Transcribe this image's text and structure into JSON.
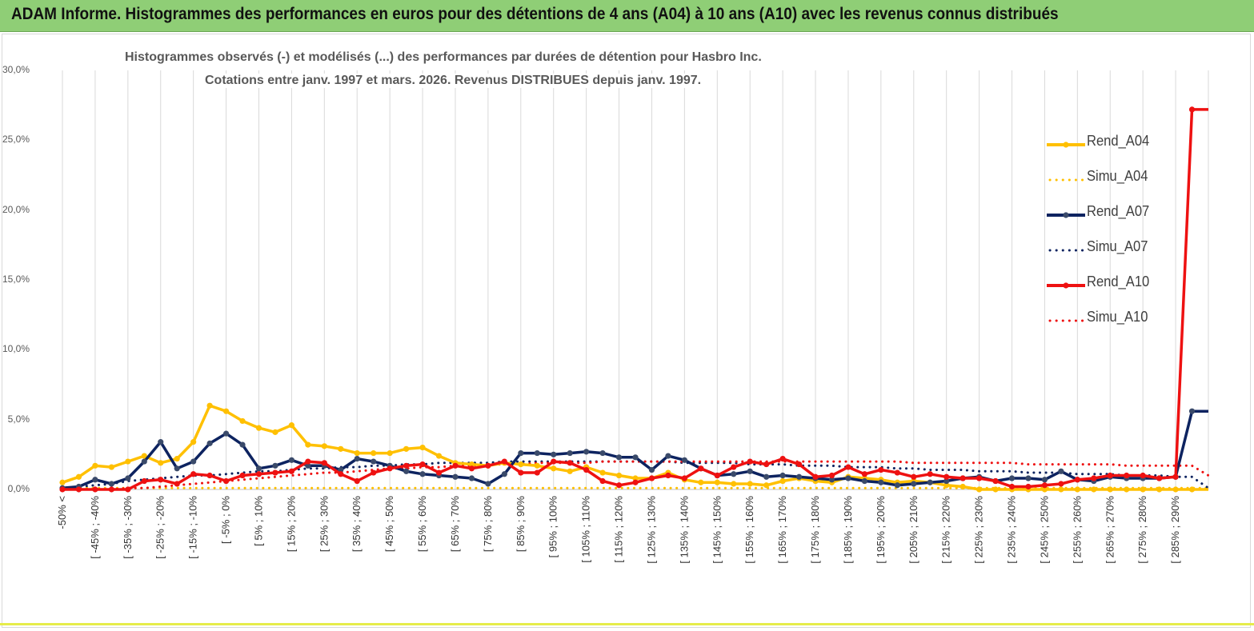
{
  "banner": {
    "title": "ADAM Informe. Histogrammes des performances en euros pour des détentions de 4 ans (A04) à 10 ans (A10) avec les revenus connus distribués"
  },
  "chart_data": {
    "type": "line",
    "title": "Histogrammes observés (-) et modélisés (...)  des performances par durées de détention pour Hasbro Inc.",
    "subtitle": "Cotations entre janv. 1997 et mars. 2026.  Revenus DISTRIBUES depuis janv. 1997.",
    "ylim": [
      0,
      30
    ],
    "y_tick_labels": [
      "0,0%",
      "5,0%",
      "10,0%",
      "15,0%",
      "20,0%",
      "25,0%",
      "30,0%"
    ],
    "grid": {
      "vertical": true,
      "horizontal": false
    },
    "legend_position": "right",
    "x_tick_labels": [
      "-50% <",
      "[ -45% ; -40%",
      "[ -35% ; -30%",
      "[ -25% ; -20%",
      "[ -15% ; -10%",
      "[ -5% ; 0%",
      "[ 5% ; 10%",
      "[ 15% ; 20%",
      "[ 25% ; 30%",
      "[ 35% ; 40%",
      "[ 45% ; 50%",
      "[ 55% ; 60%",
      "[ 65% ; 70%",
      "[ 75% ; 80%",
      "[ 85% ; 90%",
      "[ 95% ; 100%",
      "[ 105% ; 110%",
      "[ 115% ; 120%",
      "[ 125% ; 130%",
      "[ 135% ; 140%",
      "[ 145% ; 150%",
      "[ 155% ; 160%",
      "[ 165% ; 170%",
      "[ 175% ; 180%",
      "[ 185% ; 190%",
      "[ 195% ; 200%",
      "[ 205% ; 210%",
      "[ 215% ; 220%",
      "[ 225% ; 230%",
      "[ 235% ; 240%",
      "[ 245% ; 250%",
      "[ 255% ; 260%",
      "[ 265% ; 270%",
      "[ 275% ; 280%",
      "[ 285% ; 290%"
    ],
    "x_tick_every": 2,
    "series": [
      {
        "name": "Rend_A04",
        "style": "solid",
        "color": "#ffc000",
        "values": [
          0.5,
          0.9,
          1.7,
          1.6,
          2.0,
          2.4,
          1.9,
          2.2,
          3.4,
          6.0,
          5.6,
          4.9,
          4.4,
          4.1,
          4.6,
          3.2,
          3.1,
          2.9,
          2.6,
          2.6,
          2.6,
          2.9,
          3.0,
          2.4,
          1.9,
          1.8,
          1.7,
          1.9,
          1.8,
          1.7,
          1.5,
          1.3,
          1.6,
          1.2,
          1.0,
          0.8,
          0.8,
          1.2,
          0.7,
          0.5,
          0.5,
          0.4,
          0.4,
          0.3,
          0.6,
          0.8,
          0.6,
          0.5,
          0.9,
          0.8,
          0.7,
          0.5,
          0.6,
          0.5,
          0.3,
          0.2,
          0.0,
          0.0,
          0.0,
          0.0,
          0.0,
          0.0,
          0.0,
          0.0,
          0.0,
          0.0,
          0.0,
          0.0,
          0.0,
          0.0,
          0.0
        ]
      },
      {
        "name": "Simu_A04",
        "style": "dotted",
        "color": "#ffc000",
        "values": [
          0.1,
          0.1,
          0.1,
          0.1,
          0.1,
          0.1,
          0.1,
          0.1,
          0.1,
          0.1,
          0.1,
          0.1,
          0.1,
          0.1,
          0.1,
          0.1,
          0.1,
          0.1,
          0.1,
          0.1,
          0.1,
          0.1,
          0.1,
          0.1,
          0.1,
          0.1,
          0.1,
          0.1,
          0.1,
          0.1,
          0.1,
          0.1,
          0.1,
          0.1,
          0.1,
          0.1,
          0.1,
          0.1,
          0.1,
          0.1,
          0.1,
          0.1,
          0.1,
          0.1,
          0.1,
          0.1,
          0.1,
          0.1,
          0.1,
          0.1,
          0.1,
          0.1,
          0.1,
          0.1,
          0.1,
          0.1,
          0.1,
          0.1,
          0.1,
          0.1,
          0.1,
          0.1,
          0.1,
          0.1,
          0.1,
          0.1,
          0.1,
          0.1,
          0.1,
          0.1,
          0.1
        ]
      },
      {
        "name": "Rend_A07",
        "style": "solid",
        "color": "#0d2360",
        "values": [
          0.1,
          0.2,
          0.7,
          0.4,
          0.8,
          2.0,
          3.4,
          1.5,
          2.0,
          3.3,
          4.0,
          3.2,
          1.5,
          1.7,
          2.1,
          1.7,
          1.7,
          1.4,
          2.2,
          2.0,
          1.7,
          1.3,
          1.1,
          1.0,
          0.9,
          0.8,
          0.4,
          1.1,
          2.6,
          2.6,
          2.5,
          2.6,
          2.7,
          2.6,
          2.3,
          2.3,
          1.4,
          2.4,
          2.1,
          1.5,
          1.0,
          1.1,
          1.3,
          0.9,
          1.0,
          0.9,
          0.8,
          0.7,
          0.8,
          0.6,
          0.5,
          0.3,
          0.4,
          0.5,
          0.6,
          0.8,
          0.9,
          0.6,
          0.8,
          0.8,
          0.7,
          1.3,
          0.7,
          0.6,
          0.9,
          0.8,
          0.8,
          0.8,
          0.9,
          5.6,
          5.6
        ]
      },
      {
        "name": "Simu_A07",
        "style": "dotted",
        "color": "#0d2360",
        "values": [
          0.1,
          0.2,
          0.3,
          0.4,
          0.6,
          0.7,
          0.8,
          0.9,
          1.0,
          1.0,
          1.1,
          1.2,
          1.3,
          1.3,
          1.4,
          1.5,
          1.5,
          1.6,
          1.6,
          1.7,
          1.7,
          1.8,
          1.8,
          1.9,
          1.9,
          1.9,
          1.9,
          2.0,
          2.0,
          2.0,
          2.0,
          2.0,
          2.0,
          2.0,
          2.0,
          2.0,
          2.0,
          2.0,
          1.9,
          1.9,
          1.9,
          1.9,
          1.8,
          1.8,
          1.8,
          1.7,
          1.7,
          1.7,
          1.6,
          1.6,
          1.6,
          1.5,
          1.5,
          1.4,
          1.4,
          1.4,
          1.3,
          1.3,
          1.3,
          1.2,
          1.2,
          1.2,
          1.1,
          1.1,
          1.1,
          1.0,
          1.0,
          1.0,
          0.9,
          0.9,
          0.1
        ]
      },
      {
        "name": "Rend_A10",
        "style": "solid",
        "color": "#ee1111",
        "values": [
          0.0,
          0.0,
          0.0,
          0.0,
          0.0,
          0.6,
          0.7,
          0.4,
          1.1,
          1.0,
          0.6,
          1.0,
          1.1,
          1.2,
          1.3,
          2.0,
          1.9,
          1.1,
          0.6,
          1.2,
          1.5,
          1.7,
          1.8,
          1.2,
          1.7,
          1.5,
          1.7,
          2.0,
          1.2,
          1.2,
          2.0,
          1.9,
          1.4,
          0.6,
          0.3,
          0.5,
          0.8,
          1.0,
          0.8,
          1.5,
          1.0,
          1.6,
          2.0,
          1.8,
          2.2,
          1.8,
          0.9,
          1.0,
          1.6,
          1.1,
          1.4,
          1.2,
          0.9,
          1.1,
          0.9,
          0.8,
          0.8,
          0.6,
          0.2,
          0.2,
          0.3,
          0.4,
          0.7,
          0.8,
          1.0,
          1.0,
          1.0,
          0.8,
          0.9,
          27.2,
          27.2
        ]
      },
      {
        "name": "Simu_A10",
        "style": "dotted",
        "color": "#ee1111",
        "values": [
          0.0,
          0.0,
          0.0,
          0.0,
          0.1,
          0.1,
          0.2,
          0.3,
          0.4,
          0.5,
          0.6,
          0.7,
          0.8,
          0.9,
          1.0,
          1.1,
          1.2,
          1.2,
          1.3,
          1.4,
          1.5,
          1.5,
          1.6,
          1.6,
          1.7,
          1.7,
          1.8,
          1.8,
          1.8,
          1.9,
          1.9,
          1.9,
          1.9,
          2.0,
          2.0,
          2.0,
          2.0,
          2.0,
          2.0,
          2.0,
          2.0,
          2.0,
          2.0,
          2.0,
          2.0,
          2.0,
          2.0,
          2.0,
          2.0,
          2.0,
          2.0,
          2.0,
          1.9,
          1.9,
          1.9,
          1.9,
          1.9,
          1.9,
          1.9,
          1.8,
          1.8,
          1.8,
          1.8,
          1.8,
          1.8,
          1.7,
          1.7,
          1.7,
          1.7,
          1.7,
          1.0
        ]
      }
    ]
  }
}
